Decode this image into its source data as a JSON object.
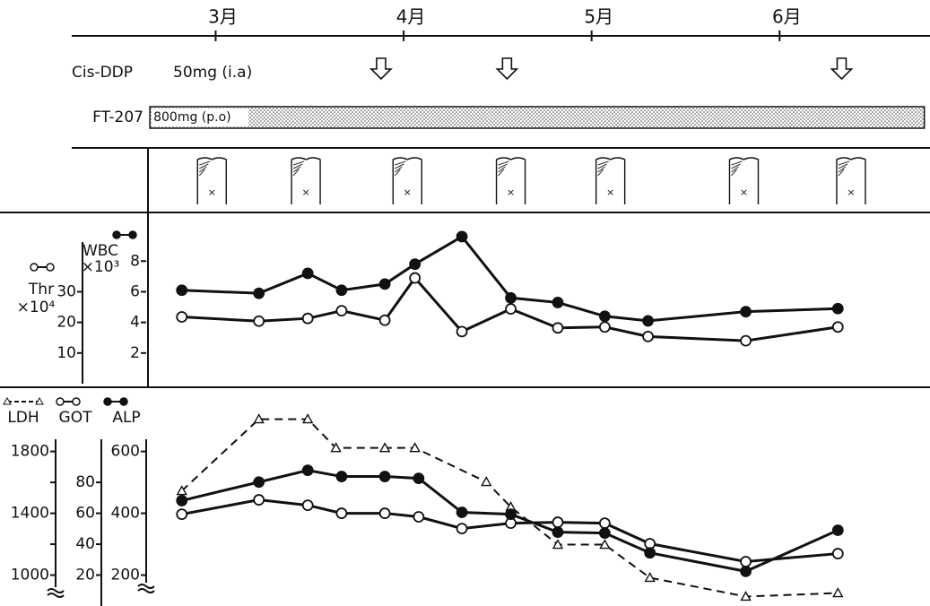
{
  "chart_data": [
    {
      "type": "timeline",
      "xlim": [
        2.64,
        6.8
      ],
      "xticks": [
        {
          "value": 3,
          "label": "3月"
        },
        {
          "value": 4,
          "label": "4月"
        },
        {
          "value": 5,
          "label": "5月"
        },
        {
          "value": 6,
          "label": "6月"
        }
      ],
      "cis_ddp": {
        "name": "Cis-DDP",
        "dose": "50mg (i.a)",
        "x": [
          3.88,
          4.55,
          6.33
        ]
      },
      "ft207": {
        "name": "FT-207",
        "dose": "800mg (p.o)",
        "x": [
          2.65,
          6.77
        ]
      },
      "imaging_x": [
        2.98,
        3.48,
        4.02,
        4.57,
        5.1,
        5.81,
        6.38
      ]
    },
    {
      "type": "line",
      "xlim": [
        2.64,
        6.8
      ],
      "x": [
        2.82,
        3.23,
        3.49,
        3.67,
        3.9,
        4.06,
        4.31,
        4.57,
        4.82,
        5.07,
        5.3,
        5.82,
        6.31
      ],
      "ylim": [
        0,
        11
      ],
      "yticks": [
        2,
        4,
        6,
        8
      ],
      "y2lim": [
        0,
        55
      ],
      "y2ticks": [
        10,
        20,
        30
      ],
      "series": [
        {
          "name": "WBC",
          "unit": "×10³",
          "marker": "filled",
          "axis": "y",
          "values": [
            6.1,
            5.9,
            7.2,
            6.1,
            6.5,
            7.8,
            9.6,
            5.6,
            5.3,
            4.4,
            4.1,
            4.7,
            4.9
          ]
        },
        {
          "name": "Thr",
          "unit": "×10⁴",
          "marker": "open",
          "axis": "y2",
          "values": [
            21.8,
            20.4,
            21.3,
            23.8,
            20.7,
            34.5,
            17.0,
            24.4,
            18.2,
            18.5,
            15.4,
            14.0,
            18.5
          ]
        }
      ]
    },
    {
      "type": "line",
      "xlim": [
        2.64,
        6.8
      ],
      "x": [
        2.82,
        3.23,
        3.49,
        3.67,
        3.9,
        4.08,
        4.31,
        4.57,
        4.82,
        5.07,
        5.31,
        5.82,
        6.31
      ],
      "ylim": [
        100,
        770
      ],
      "yticks": [
        200,
        400,
        600
      ],
      "y2lim": [
        0,
        134
      ],
      "y2ticks": [
        20,
        40,
        60,
        80
      ],
      "y3lim": [
        800,
        2140
      ],
      "y3ticks": [
        1000,
        1400,
        1800
      ],
      "y3minor": [
        1200,
        1600
      ],
      "series": [
        {
          "name": "LDH",
          "marker": "triangle",
          "dash": true,
          "axis": "y3",
          "x": [
            2.82,
            3.23,
            3.49,
            3.64,
            3.9,
            4.06,
            4.44,
            4.57,
            4.82,
            5.07,
            5.31,
            5.82,
            6.31
          ],
          "values": [
            1545,
            2009,
            2009,
            1823,
            1823,
            1823,
            1603,
            1441,
            1197,
            1197,
            983,
            861,
            884
          ]
        },
        {
          "name": "GOT",
          "marker": "open",
          "axis": "y2",
          "values": [
            59.4,
            68.7,
            65.2,
            60,
            60,
            57.7,
            50.1,
            53.6,
            54.2,
            53.6,
            40.3,
            28.7,
            33.9
          ]
        },
        {
          "name": "ALP",
          "marker": "filled",
          "axis": "y",
          "values": [
            441,
            501,
            539,
            519,
            519,
            513,
            403,
            397,
            339,
            336,
            272,
            212,
            345
          ]
        }
      ]
    }
  ]
}
